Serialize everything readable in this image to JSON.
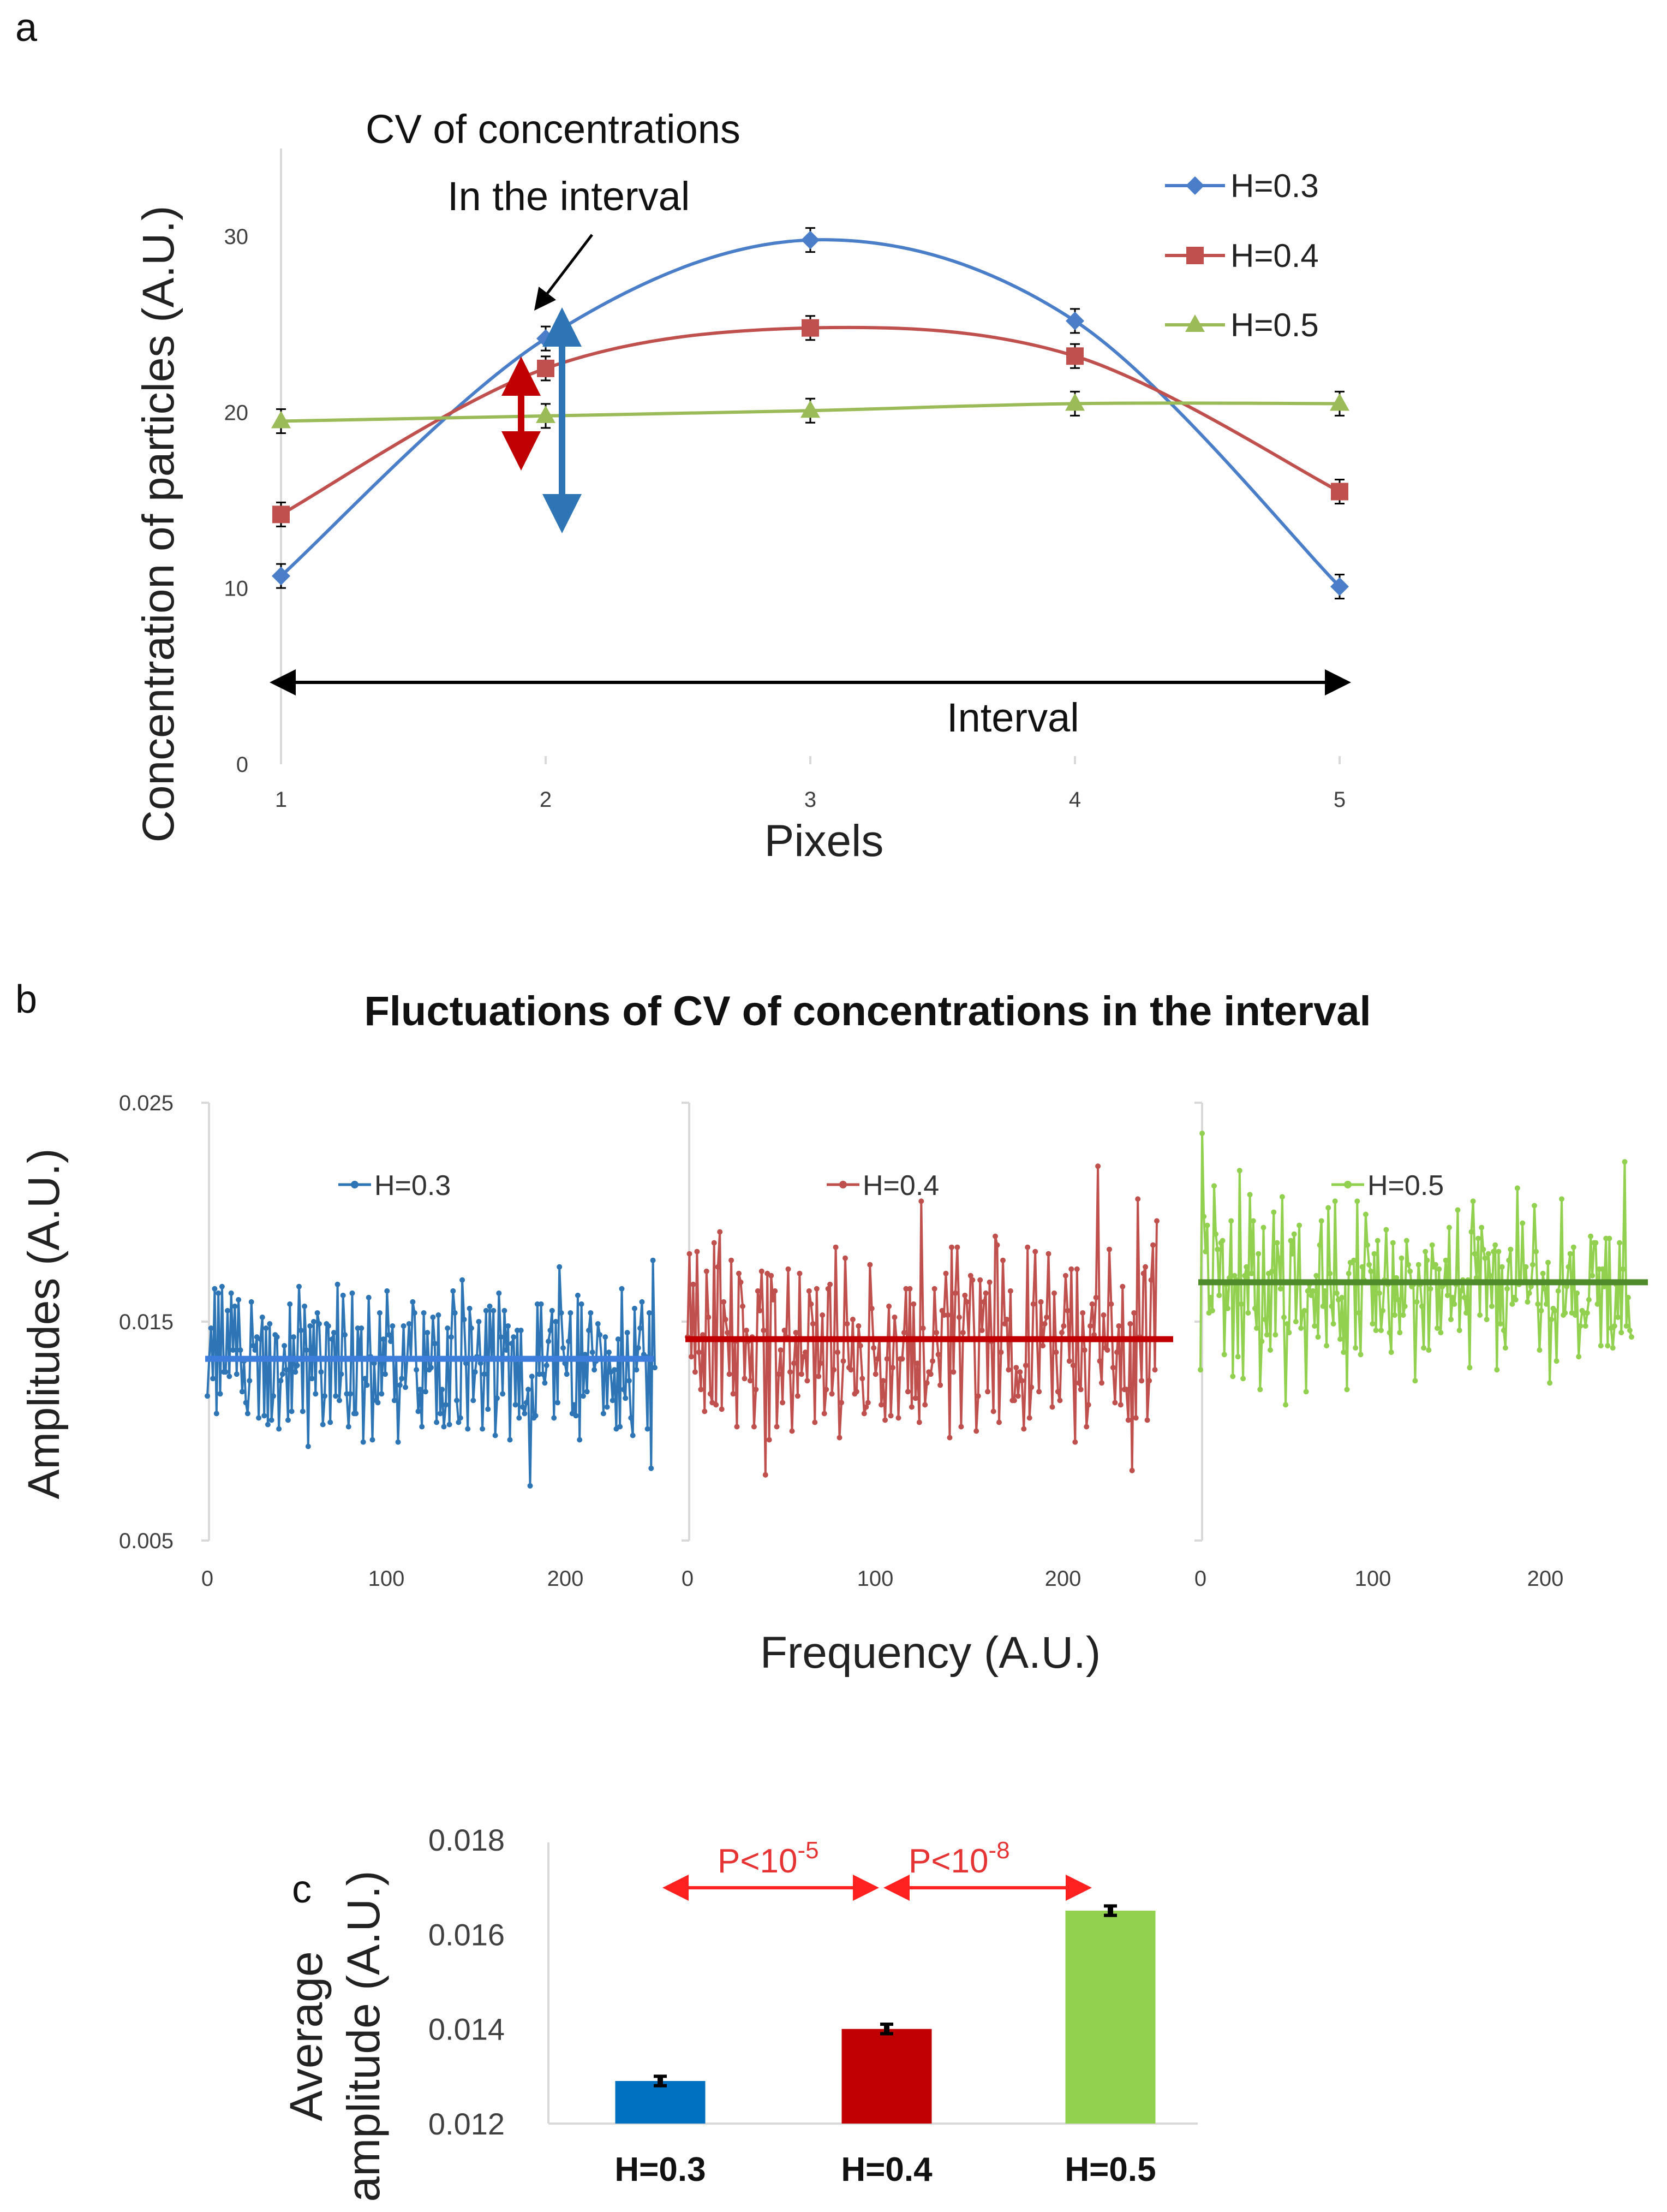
{
  "panel_labels": {
    "a": "a",
    "b": "b",
    "c": "c"
  },
  "chart_data": [
    {
      "id": "a",
      "type": "line",
      "xlabel": "Pixels",
      "ylabel": "Concentration of particles (A.U.)",
      "categories": [
        "1",
        "2",
        "3",
        "4",
        "5"
      ],
      "x": [
        1,
        2,
        3,
        4,
        5
      ],
      "xlim": [
        1,
        5
      ],
      "ylim": [
        0,
        35
      ],
      "yticks": [
        "0",
        "10",
        "20",
        "30"
      ],
      "series": [
        {
          "name": "H=0.3",
          "color": "#4a7ec8",
          "marker": "diamond",
          "values": [
            10.7,
            24.2,
            29.8,
            25.2,
            10.1
          ]
        },
        {
          "name": "H=0.4",
          "color": "#c0504d",
          "marker": "square",
          "values": [
            14.2,
            22.5,
            24.8,
            23.2,
            15.5
          ]
        },
        {
          "name": "H=0.5",
          "color": "#9bbb59",
          "marker": "triangle",
          "values": [
            19.5,
            19.8,
            20.1,
            20.5,
            20.5
          ]
        }
      ],
      "annotations": {
        "cv_line1": "CV of concentrations",
        "cv_line2": "In the interval",
        "interval": "Interval"
      }
    },
    {
      "id": "b",
      "type": "line",
      "title": "Fluctuations of CV of concentrations in the interval",
      "xlabel": "Frequency (A.U.)",
      "ylabel": "Amplitudes (A.U.)",
      "ylim": [
        0.005,
        0.025
      ],
      "yticks": [
        "0.025",
        "0.015",
        "0.005"
      ],
      "xticks": [
        "0",
        "100",
        "200"
      ],
      "xlim": [
        0,
        250
      ],
      "series": [
        {
          "name": "H=0.3",
          "color": "#2e75b6",
          "mean_color": "#3d7ddc",
          "mean": 0.0133,
          "values": [
            0.0116,
            0.0133,
            0.0147,
            0.0124,
            0.0165,
            0.0108,
            0.0163,
            0.0117,
            0.0166,
            0.0127,
            0.0127,
            0.0155,
            0.0125,
            0.0163,
            0.0137,
            0.0157,
            0.0126,
            0.016,
            0.0137,
            0.0118,
            0.0132,
            0.0113,
            0.0108,
            0.0123,
            0.0159,
            0.0139,
            0.0137,
            0.0143,
            0.0106,
            0.0142,
            0.0152,
            0.0107,
            0.0147,
            0.0103,
            0.0149,
            0.0105,
            0.0116,
            0.0144,
            0.0143,
            0.0101,
            0.0123,
            0.0126,
            0.0139,
            0.0128,
            0.0105,
            0.0158,
            0.0109,
            0.0143,
            0.0127,
            0.013,
            0.0166,
            0.0146,
            0.0109,
            0.0157,
            0.0137,
            0.0093,
            0.0148,
            0.0124,
            0.015,
            0.0117,
            0.0154,
            0.0149,
            0.0127,
            0.0103,
            0.0116,
            0.0149,
            0.0148,
            0.0104,
            0.0142,
            0.0145,
            0.0116,
            0.0167,
            0.0114,
            0.0126,
            0.0162,
            0.0144,
            0.0117,
            0.0102,
            0.0117,
            0.0163,
            0.0108,
            0.0108,
            0.0147,
            0.0135,
            0.0147,
            0.0095,
            0.0124,
            0.0121,
            0.0161,
            0.0134,
            0.0096,
            0.0131,
            0.0114,
            0.0113,
            0.0154,
            0.0117,
            0.0142,
            0.0126,
            0.0164,
            0.0144,
            0.0141,
            0.0148,
            0.0114,
            0.0133,
            0.0095,
            0.0121,
            0.0124,
            0.0148,
            0.012,
            0.0133,
            0.0149,
            0.0133,
            0.0159,
            0.0154,
            0.0128,
            0.0109,
            0.0119,
            0.0102,
            0.0154,
            0.0118,
            0.0145,
            0.0128,
            0.0129,
            0.0152,
            0.014,
            0.0104,
            0.0153,
            0.0108,
            0.0119,
            0.0102,
            0.0112,
            0.0147,
            0.0103,
            0.0143,
            0.0164,
            0.0154,
            0.0114,
            0.0104,
            0.0106,
            0.0169,
            0.0151,
            0.0131,
            0.0101,
            0.0156,
            0.0147,
            0.0114,
            0.0127,
            0.0134,
            0.015,
            0.0131,
            0.0101,
            0.0126,
            0.0155,
            0.011,
            0.0157,
            0.0133,
            0.0155,
            0.0098,
            0.0115,
            0.0163,
            0.0143,
            0.0117,
            0.0155,
            0.0137,
            0.0148,
            0.0096,
            0.014,
            0.0143,
            0.0112,
            0.0146,
            0.0106,
            0.0146,
            0.0111,
            0.0108,
            0.0113,
            0.0119,
            0.0075,
            0.0125,
            0.0106,
            0.0107,
            0.0158,
            0.0126,
            0.0158,
            0.0126,
            0.0122,
            0.013,
            0.0141,
            0.0146,
            0.0155,
            0.0106,
            0.015,
            0.0113,
            0.0175,
            0.0154,
            0.0138,
            0.0131,
            0.0126,
            0.0141,
            0.0154,
            0.0108,
            0.0112,
            0.0107,
            0.0162,
            0.0096,
            0.0158,
            0.0116,
            0.0135,
            0.0118,
            0.0146,
            0.0154,
            0.0136,
            0.0128,
            0.0132,
            0.0149,
            0.0144,
            0.0133,
            0.0108,
            0.0143,
            0.0111,
            0.0136,
            0.0127,
            0.0114,
            0.0128,
            0.0101,
            0.0142,
            0.0102,
            0.0165,
            0.0119,
            0.0115,
            0.0145,
            0.0123,
            0.0106,
            0.0098,
            0.0156,
            0.0128,
            0.0138,
            0.0147,
            0.0159,
            0.0135,
            0.0134,
            0.0101,
            0.0154,
            0.0083,
            0.0178,
            0.0129
          ]
        },
        {
          "name": "H=0.4",
          "color": "#c0504d",
          "mean_color": "#c00000",
          "mean": 0.0142,
          "values": [
            0.0143,
            0.0181,
            0.0134,
            0.0167,
            0.0127,
            0.0182,
            0.0136,
            0.0119,
            0.0144,
            0.0109,
            0.0173,
            0.0152,
            0.0117,
            0.0113,
            0.0186,
            0.0112,
            0.0175,
            0.0191,
            0.011,
            0.0159,
            0.0151,
            0.0145,
            0.0126,
            0.0178,
            0.0117,
            0.0141,
            0.0102,
            0.0172,
            0.0168,
            0.0157,
            0.0124,
            0.0146,
            0.0141,
            0.0123,
            0.0143,
            0.0102,
            0.0119,
            0.0164,
            0.0155,
            0.0173,
            0.0146,
            0.008,
            0.0172,
            0.0096,
            0.0171,
            0.016,
            0.0164,
            0.0102,
            0.0126,
            0.0137,
            0.0113,
            0.0146,
            0.0143,
            0.0174,
            0.0127,
            0.01,
            0.0131,
            0.0145,
            0.0116,
            0.0172,
            0.0126,
            0.0134,
            0.0136,
            0.0123,
            0.0164,
            0.0158,
            0.0149,
            0.0104,
            0.0165,
            0.0125,
            0.0131,
            0.0153,
            0.0108,
            0.0119,
            0.0165,
            0.0167,
            0.0117,
            0.0128,
            0.0184,
            0.0136,
            0.0097,
            0.0113,
            0.0132,
            0.0179,
            0.0149,
            0.0129,
            0.0128,
            0.0151,
            0.0117,
            0.0118,
            0.0148,
            0.0139,
            0.0124,
            0.0108,
            0.0111,
            0.0113,
            0.0176,
            0.0156,
            0.0138,
            0.0126,
            0.0133,
            0.0142,
            0.0112,
            0.0123,
            0.0105,
            0.0133,
            0.0157,
            0.0107,
            0.0129,
            0.0152,
            0.0142,
            0.0106,
            0.0133,
            0.0133,
            0.0145,
            0.0165,
            0.0118,
            0.0165,
            0.0111,
            0.0158,
            0.0115,
            0.0131,
            0.0104,
            0.0205,
            0.0147,
            0.0112,
            0.0122,
            0.0127,
            0.0126,
            0.0132,
            0.0165,
            0.0145,
            0.0135,
            0.0121,
            0.0155,
            0.0153,
            0.0172,
            0.0153,
            0.0097,
            0.0184,
            0.0127,
            0.0163,
            0.0184,
            0.0152,
            0.0102,
            0.0145,
            0.0162,
            0.0159,
            0.0142,
            0.0171,
            0.0169,
            0.0142,
            0.01,
            0.0116,
            0.0169,
            0.0146,
            0.0159,
            0.0163,
            0.0118,
            0.0168,
            0.0141,
            0.0109,
            0.0189,
            0.0185,
            0.0104,
            0.0136,
            0.0178,
            0.0149,
            0.0151,
            0.0128,
            0.0164,
            0.0114,
            0.0114,
            0.0129,
            0.0116,
            0.0127,
            0.0123,
            0.0101,
            0.013,
            0.0184,
            0.0106,
            0.012,
            0.0158,
            0.0182,
            0.0142,
            0.0118,
            0.0159,
            0.0139,
            0.0149,
            0.0152,
            0.0181,
            0.0142,
            0.0111,
            0.0163,
            0.0136,
            0.0118,
            0.0114,
            0.0145,
            0.0148,
            0.0171,
            0.0155,
            0.0132,
            0.0174,
            0.013,
            0.0095,
            0.0174,
            0.0122,
            0.0119,
            0.0154,
            0.0137,
            0.0102,
            0.0112,
            0.0148,
            0.0158,
            0.0144,
            0.0161,
            0.0221,
            0.0132,
            0.0122,
            0.0153,
            0.0138,
            0.0137,
            0.0183,
            0.0158,
            0.0129,
            0.0113,
            0.0136,
            0.0148,
            0.0112,
            0.0166,
            0.0119,
            0.0119,
            0.0105,
            0.0149,
            0.0082,
            0.0154,
            0.0106,
            0.0206,
            0.0143,
            0.0123,
            0.0172,
            0.0175,
            0.0105,
            0.0123,
            0.0169,
            0.0185,
            0.0128,
            0.0196
          ]
        },
        {
          "name": "H=0.5",
          "color": "#92d050",
          "mean_color": "#4f8a2b",
          "mean": 0.0168,
          "values": [
            0.0128,
            0.0236,
            0.0198,
            0.0182,
            0.0194,
            0.0154,
            0.0161,
            0.0155,
            0.0212,
            0.019,
            0.0183,
            0.0162,
            0.0186,
            0.0187,
            0.0135,
            0.0167,
            0.0156,
            0.017,
            0.0196,
            0.0125,
            0.0171,
            0.0169,
            0.0134,
            0.0219,
            0.0158,
            0.0124,
            0.0171,
            0.0175,
            0.0154,
            0.0208,
            0.0172,
            0.0196,
            0.0156,
            0.0147,
            0.0181,
            0.0119,
            0.0141,
            0.0193,
            0.0151,
            0.0144,
            0.0172,
            0.0137,
            0.0173,
            0.02,
            0.0144,
            0.0186,
            0.0179,
            0.0165,
            0.0207,
            0.0152,
            0.0112,
            0.0149,
            0.0145,
            0.0187,
            0.0181,
            0.019,
            0.015,
            0.0168,
            0.0194,
            0.0147,
            0.0154,
            0.0155,
            0.0118,
            0.0164,
            0.0167,
            0.0162,
            0.0164,
            0.0148,
            0.0171,
            0.0143,
            0.0185,
            0.0196,
            0.0157,
            0.0164,
            0.0139,
            0.0202,
            0.0172,
            0.0157,
            0.0149,
            0.0205,
            0.0163,
            0.016,
            0.0142,
            0.0161,
            0.0136,
            0.0168,
            0.0119,
            0.0172,
            0.0177,
            0.0177,
            0.0178,
            0.0138,
            0.0205,
            0.0154,
            0.0135,
            0.0175,
            0.0169,
            0.0199,
            0.0185,
            0.0176,
            0.0173,
            0.0149,
            0.0181,
            0.0146,
            0.0187,
            0.0163,
            0.0146,
            0.0155,
            0.0169,
            0.0192,
            0.0167,
            0.0145,
            0.0136,
            0.0186,
            0.0153,
            0.017,
            0.016,
            0.0145,
            0.0179,
            0.0153,
            0.0157,
            0.0187,
            0.0176,
            0.0173,
            0.0166,
            0.0167,
            0.0123,
            0.0159,
            0.0176,
            0.0167,
            0.0157,
            0.0138,
            0.0182,
            0.0178,
            0.0137,
            0.0165,
            0.0185,
            0.0175,
            0.0176,
            0.0147,
            0.0174,
            0.0145,
            0.0166,
            0.0167,
            0.0178,
            0.0162,
            0.0193,
            0.0151,
            0.0161,
            0.0158,
            0.0167,
            0.0201,
            0.0146,
            0.0164,
            0.0169,
            0.0161,
            0.0154,
            0.0169,
            0.0129,
            0.0191,
            0.0205,
            0.0181,
            0.017,
            0.0188,
            0.0153,
            0.0193,
            0.0183,
            0.0179,
            0.0151,
            0.0181,
            0.0171,
            0.0157,
            0.0182,
            0.0185,
            0.0128,
            0.0182,
            0.0149,
            0.0175,
            0.0146,
            0.0138,
            0.0165,
            0.0178,
            0.0183,
            0.0158,
            0.0161,
            0.016,
            0.0211,
            0.0167,
            0.0168,
            0.0195,
            0.0168,
            0.0175,
            0.0159,
            0.0163,
            0.0166,
            0.0176,
            0.0203,
            0.0182,
            0.0158,
            0.0137,
            0.0155,
            0.0172,
            0.0165,
            0.0158,
            0.0177,
            0.0122,
            0.0151,
            0.0156,
            0.0155,
            0.0132,
            0.0164,
            0.0168,
            0.0206,
            0.0153,
            0.0154,
            0.0166,
            0.0175,
            0.0181,
            0.0154,
            0.0184,
            0.0153,
            0.0163,
            0.0134,
            0.0148,
            0.0155,
            0.0154,
            0.0148,
            0.0154,
            0.016,
            0.0189,
            0.0171,
            0.0186,
            0.0186,
            0.0158,
            0.0174,
            0.0139,
            0.0174,
            0.0166,
            0.0188,
            0.0139,
            0.0188,
            0.0147,
            0.0138,
            0.0148,
            0.0167,
            0.0152,
            0.0186,
            0.0145,
            0.0174,
            0.0223,
            0.0148,
            0.0161,
            0.0146,
            0.0143
          ]
        }
      ]
    },
    {
      "id": "c",
      "type": "bar",
      "ylabel_line1": "Average",
      "ylabel_line2": "amplitude (A.U.)",
      "categories": [
        "H=0.3",
        "H=0.4",
        "H=0.5"
      ],
      "values": [
        0.0129,
        0.014,
        0.0165
      ],
      "errors": [
        0.0001,
        0.0001,
        0.0001
      ],
      "colors": [
        "#0070c0",
        "#c00000",
        "#92d050"
      ],
      "ylim": [
        0.012,
        0.018
      ],
      "yticks": [
        "0.018",
        "0.016",
        "0.014",
        "0.012"
      ],
      "comparisons": [
        {
          "label": "P<10",
          "exp": "-5",
          "from": "H=0.3",
          "to": "H=0.4"
        },
        {
          "label": "P<10",
          "exp": "-8",
          "from": "H=0.4",
          "to": "H=0.5"
        }
      ]
    }
  ]
}
